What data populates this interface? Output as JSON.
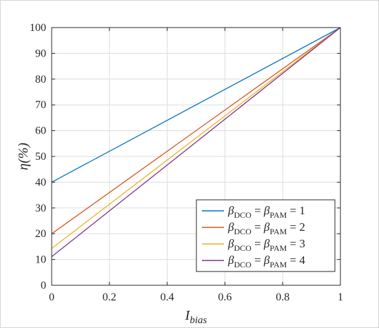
{
  "chart_data": {
    "type": "line",
    "xlabel": {
      "main": "I",
      "sub": "bias"
    },
    "ylabel": "η(%)",
    "x_ticks": [
      "0",
      "0.2",
      "0.4",
      "0.6",
      "0.8",
      "1"
    ],
    "y_ticks": [
      "0",
      "10",
      "20",
      "30",
      "40",
      "50",
      "60",
      "70",
      "80",
      "90",
      "100"
    ],
    "xlim": [
      0,
      1
    ],
    "ylim": [
      0,
      100
    ],
    "grid": true,
    "legend_position": "bottom-right",
    "x": [
      0,
      1
    ],
    "series": [
      {
        "name": "β_DCO = β_PAM = 1",
        "sym": "β",
        "sub1": "DCO",
        "sub2": "PAM",
        "value": "1",
        "values": [
          40,
          100
        ],
        "color": "#0072bd"
      },
      {
        "name": "β_DCO = β_PAM = 2",
        "sym": "β",
        "sub1": "DCO",
        "sub2": "PAM",
        "value": "2",
        "values": [
          20,
          100
        ],
        "color": "#d95319"
      },
      {
        "name": "β_DCO = β_PAM = 3",
        "sym": "β",
        "sub1": "DCO",
        "sub2": "PAM",
        "value": "3",
        "values": [
          14.3,
          100
        ],
        "color": "#edb120"
      },
      {
        "name": "β_DCO = β_PAM = 4",
        "sym": "β",
        "sub1": "DCO",
        "sub2": "PAM",
        "value": "4",
        "values": [
          11.1,
          100
        ],
        "color": "#7e2f8e"
      }
    ]
  }
}
